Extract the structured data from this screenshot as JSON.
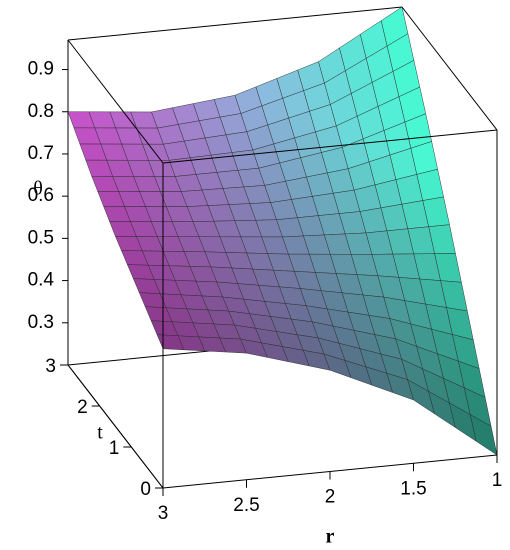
{
  "chart_data": {
    "type": "surface",
    "xlabel": "r",
    "ylabel": "t",
    "zlabel": "θ",
    "x": [
      1,
      1.5,
      2,
      2.5,
      3
    ],
    "y": [
      0,
      0.75,
      1.5,
      2.25,
      3
    ],
    "z": [
      [
        0.2,
        0.35,
        0.44,
        0.5,
        0.53
      ],
      [
        0.4,
        0.47,
        0.52,
        0.56,
        0.59
      ],
      [
        0.6,
        0.6,
        0.61,
        0.63,
        0.65
      ],
      [
        0.79,
        0.73,
        0.7,
        0.7,
        0.72
      ],
      [
        0.97,
        0.86,
        0.8,
        0.78,
        0.8
      ]
    ],
    "xlim": [
      1,
      3
    ],
    "ylim": [
      0,
      3
    ],
    "zlim": [
      0.2,
      0.97
    ],
    "xticks": [
      1,
      1.5,
      2,
      2.5,
      3
    ],
    "yticks": [
      0,
      1,
      2,
      3
    ],
    "zticks": [
      0.3,
      0.4,
      0.5,
      0.6,
      0.7,
      0.8,
      0.9
    ],
    "x_reversed": true,
    "colors": [
      "#e65ae6",
      "#40f0c8"
    ]
  }
}
